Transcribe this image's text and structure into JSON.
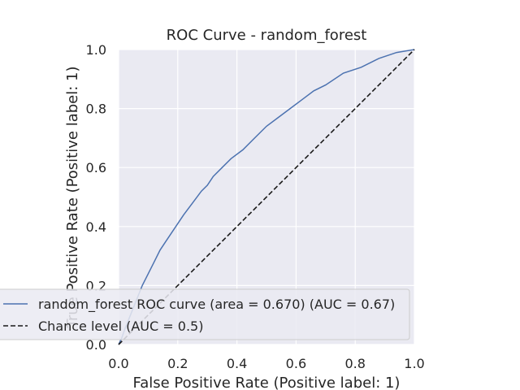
{
  "chart_data": {
    "type": "line",
    "title": "ROC Curve - random_forest",
    "xlabel": "False Positive Rate (Positive label: 1)",
    "ylabel": "True Positive Rate (Positive label: 1)",
    "xlim": [
      0,
      1
    ],
    "ylim": [
      0,
      1
    ],
    "xticks": [
      "0.0",
      "0.2",
      "0.4",
      "0.6",
      "0.8",
      "1.0"
    ],
    "yticks": [
      "0.0",
      "0.2",
      "0.4",
      "0.6",
      "0.8",
      "1.0"
    ],
    "grid": true,
    "legend_position": "lower-left",
    "series": [
      {
        "name": "random_forest ROC curve (area = 0.670) (AUC = 0.67)",
        "style": "solid",
        "color": "#4c72b0",
        "x": [
          0.0,
          0.01,
          0.02,
          0.04,
          0.06,
          0.08,
          0.1,
          0.12,
          0.14,
          0.16,
          0.18,
          0.2,
          0.22,
          0.25,
          0.28,
          0.3,
          0.32,
          0.35,
          0.38,
          0.42,
          0.46,
          0.5,
          0.54,
          0.58,
          0.62,
          0.66,
          0.7,
          0.76,
          0.82,
          0.88,
          0.94,
          1.0
        ],
        "y": [
          0.0,
          0.02,
          0.05,
          0.1,
          0.15,
          0.2,
          0.24,
          0.28,
          0.32,
          0.35,
          0.38,
          0.41,
          0.44,
          0.48,
          0.52,
          0.54,
          0.57,
          0.6,
          0.63,
          0.66,
          0.7,
          0.74,
          0.77,
          0.8,
          0.83,
          0.86,
          0.88,
          0.92,
          0.94,
          0.97,
          0.99,
          1.0
        ]
      },
      {
        "name": "Chance level (AUC = 0.5)",
        "style": "dashed",
        "color": "#1a1a1a",
        "x": [
          0.0,
          1.0
        ],
        "y": [
          0.0,
          1.0
        ]
      }
    ]
  }
}
